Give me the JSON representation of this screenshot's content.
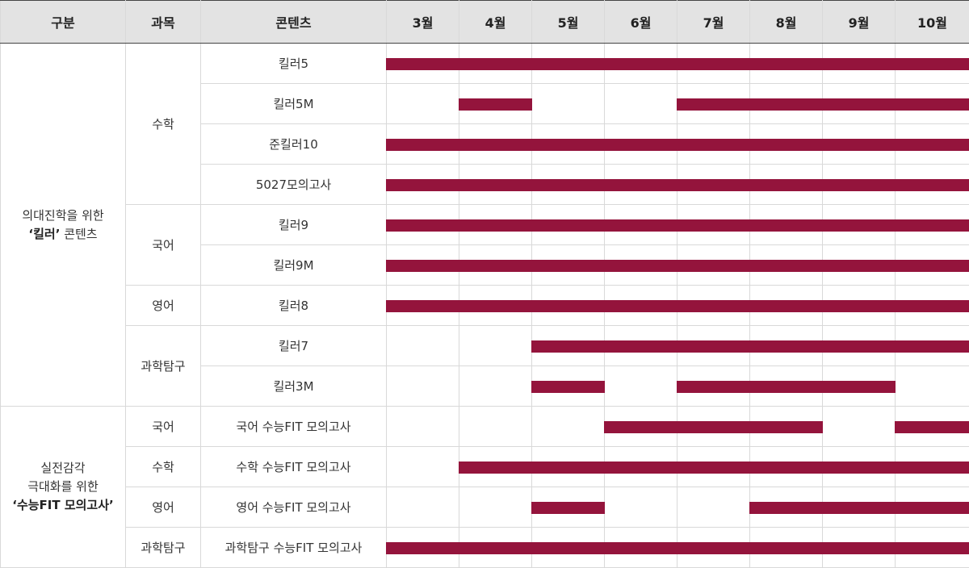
{
  "headers": {
    "division": "구분",
    "subject": "과목",
    "content": "콘텐츠",
    "months": [
      "3월",
      "4월",
      "5월",
      "6월",
      "7월",
      "8월",
      "9월",
      "10월"
    ]
  },
  "categories": [
    {
      "line1": "의대진학을 위한",
      "line2_quote_open": "‘",
      "line2_bold": "킬러",
      "line2_quote_close": "’",
      "line2_rest": " 콘텐츠"
    },
    {
      "line1": "실전감각",
      "line1b": "극대화를 위한",
      "line2_quote_open": "‘",
      "line2_bold": "수능FIT 모의고사",
      "line2_quote_close": "’"
    }
  ],
  "subjects": [
    "수학",
    "국어",
    "영어",
    "과학탐구",
    "국어",
    "수학",
    "영어",
    "과학탐구"
  ],
  "accent_color": "#94143c",
  "rows": [
    {
      "content": "킬러5",
      "active": [
        1,
        1,
        1,
        1,
        1,
        1,
        1,
        1
      ]
    },
    {
      "content": "킬러5M",
      "active": [
        0,
        1,
        0,
        0,
        1,
        1,
        1,
        1
      ]
    },
    {
      "content": "준킬러10",
      "active": [
        1,
        1,
        1,
        1,
        1,
        1,
        1,
        1
      ]
    },
    {
      "content": "5027모의고사",
      "active": [
        1,
        1,
        1,
        1,
        1,
        1,
        1,
        1
      ]
    },
    {
      "content": "킬러9",
      "active": [
        1,
        1,
        1,
        1,
        1,
        1,
        1,
        1
      ]
    },
    {
      "content": "킬러9M",
      "active": [
        1,
        1,
        1,
        1,
        1,
        1,
        1,
        1
      ]
    },
    {
      "content": "킬러8",
      "active": [
        1,
        1,
        1,
        1,
        1,
        1,
        1,
        1
      ]
    },
    {
      "content": "킬러7",
      "active": [
        0,
        0,
        1,
        1,
        1,
        1,
        1,
        1
      ]
    },
    {
      "content": "킬러3M",
      "active": [
        0,
        0,
        1,
        0,
        1,
        1,
        1,
        0
      ]
    },
    {
      "content": "국어 수능FIT 모의고사",
      "active": [
        0,
        0,
        0,
        1,
        1,
        1,
        0,
        1
      ]
    },
    {
      "content": "수학 수능FIT 모의고사",
      "active": [
        0,
        1,
        1,
        1,
        1,
        1,
        1,
        1
      ]
    },
    {
      "content": "영어 수능FIT 모의고사",
      "active": [
        0,
        0,
        1,
        0,
        0,
        1,
        1,
        1
      ]
    },
    {
      "content": "과학탐구 수능FIT 모의고사",
      "active": [
        1,
        1,
        1,
        1,
        1,
        1,
        1,
        1
      ]
    }
  ]
}
